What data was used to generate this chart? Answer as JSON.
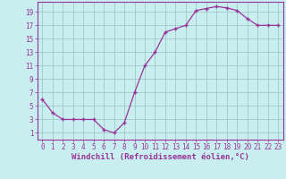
{
  "x": [
    0,
    1,
    2,
    3,
    4,
    5,
    6,
    7,
    8,
    9,
    10,
    11,
    12,
    13,
    14,
    15,
    16,
    17,
    18,
    19,
    20,
    21,
    22,
    23
  ],
  "y": [
    6,
    4,
    3,
    3,
    3,
    3,
    1.5,
    1,
    2.5,
    7,
    11,
    13,
    16,
    16.5,
    17,
    19.2,
    19.5,
    19.8,
    19.6,
    19.2,
    18,
    17,
    17,
    17
  ],
  "line_color": "#993399",
  "marker_color": "#993399",
  "bg_color": "#c8eef0",
  "grid_color": "#a0c8cc",
  "xlabel": "Windchill (Refroidissement éolien,°C)",
  "xlim": [
    -0.5,
    23.5
  ],
  "ylim": [
    0,
    20.5
  ],
  "xticks": [
    0,
    1,
    2,
    3,
    4,
    5,
    6,
    7,
    8,
    9,
    10,
    11,
    12,
    13,
    14,
    15,
    16,
    17,
    18,
    19,
    20,
    21,
    22,
    23
  ],
  "yticks": [
    1,
    3,
    5,
    7,
    9,
    11,
    13,
    15,
    17,
    19
  ],
  "tick_fontsize": 5.5,
  "xlabel_fontsize": 6.5
}
